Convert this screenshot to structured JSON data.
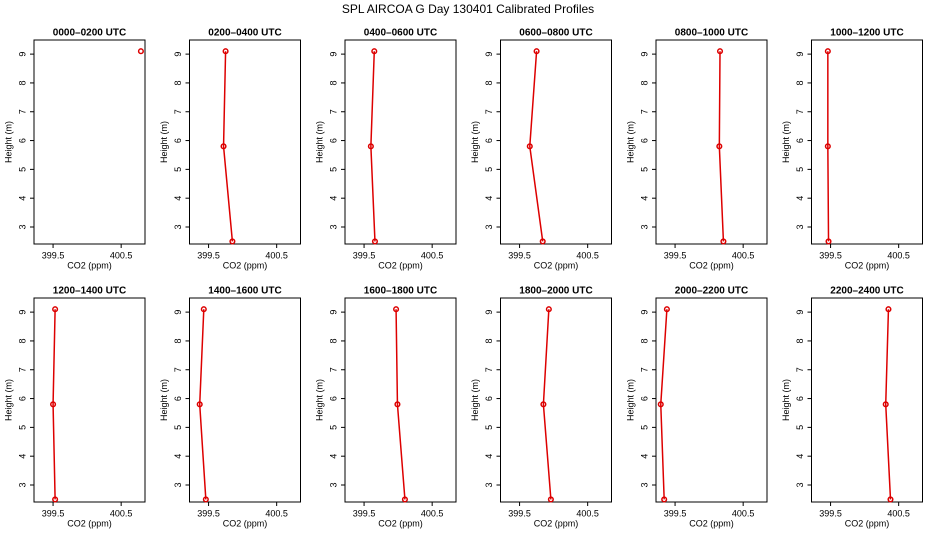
{
  "title": "SPL AIRCOA G  Day 130401  Calibrated Profiles",
  "chart_data": [
    {
      "type": "line",
      "title": "0000–0200 UTC",
      "x_label": "CO2 (ppm)",
      "y_label": "Height (m)",
      "xlim": [
        399.22,
        400.85
      ],
      "ylim": [
        2.41,
        9.49
      ],
      "xticks": [
        399.5,
        400.5
      ],
      "yticks": [
        3,
        4,
        5,
        6,
        7,
        8,
        9
      ],
      "series": [
        {
          "color": "#dd0000",
          "x": [
            400.79
          ],
          "values": [
            9.1
          ]
        }
      ]
    },
    {
      "type": "line",
      "title": "0200–0400 UTC",
      "x_label": "CO2 (ppm)",
      "y_label": "Height (m)",
      "xlim": [
        399.22,
        400.85
      ],
      "ylim": [
        2.41,
        9.49
      ],
      "xticks": [
        399.5,
        400.5
      ],
      "yticks": [
        3,
        4,
        5,
        6,
        7,
        8,
        9
      ],
      "series": [
        {
          "color": "#dd0000",
          "x": [
            399.85,
            399.72,
            399.75
          ],
          "values": [
            2.5,
            5.8,
            9.1
          ]
        }
      ]
    },
    {
      "type": "line",
      "title": "0400–0600 UTC",
      "x_label": "CO2 (ppm)",
      "y_label": "Height (m)",
      "xlim": [
        399.22,
        400.85
      ],
      "ylim": [
        2.41,
        9.49
      ],
      "xticks": [
        399.5,
        400.5
      ],
      "yticks": [
        3,
        4,
        5,
        6,
        7,
        8,
        9
      ],
      "series": [
        {
          "color": "#dd0000",
          "x": [
            399.66,
            399.6,
            399.65
          ],
          "values": [
            2.5,
            5.8,
            9.1
          ]
        }
      ]
    },
    {
      "type": "line",
      "title": "0600–0800 UTC",
      "x_label": "CO2 (ppm)",
      "y_label": "Height (m)",
      "xlim": [
        399.22,
        400.85
      ],
      "ylim": [
        2.41,
        9.49
      ],
      "xticks": [
        399.5,
        400.5
      ],
      "yticks": [
        3,
        4,
        5,
        6,
        7,
        8,
        9
      ],
      "series": [
        {
          "color": "#dd0000",
          "x": [
            399.84,
            399.65,
            399.75
          ],
          "values": [
            2.5,
            5.8,
            9.1
          ]
        }
      ]
    },
    {
      "type": "line",
      "title": "0800–1000 UTC",
      "x_label": "CO2 (ppm)",
      "y_label": "Height (m)",
      "xlim": [
        399.22,
        400.85
      ],
      "ylim": [
        2.41,
        9.49
      ],
      "xticks": [
        399.5,
        400.5
      ],
      "yticks": [
        3,
        4,
        5,
        6,
        7,
        8,
        9
      ],
      "series": [
        {
          "color": "#dd0000",
          "x": [
            400.21,
            400.15,
            400.16
          ],
          "values": [
            2.5,
            5.8,
            9.1
          ]
        }
      ]
    },
    {
      "type": "line",
      "title": "1000–1200 UTC",
      "x_label": "CO2 (ppm)",
      "y_label": "Height (m)",
      "xlim": [
        399.22,
        400.85
      ],
      "ylim": [
        2.41,
        9.49
      ],
      "xticks": [
        399.5,
        400.5
      ],
      "yticks": [
        3,
        4,
        5,
        6,
        7,
        8,
        9
      ],
      "series": [
        {
          "color": "#dd0000",
          "x": [
            399.47,
            399.46,
            399.46
          ],
          "values": [
            2.5,
            5.8,
            9.1
          ]
        }
      ]
    },
    {
      "type": "line",
      "title": "1200–1400 UTC",
      "x_label": "CO2 (ppm)",
      "y_label": "Height (m)",
      "xlim": [
        399.22,
        400.85
      ],
      "ylim": [
        2.41,
        9.49
      ],
      "xticks": [
        399.5,
        400.5
      ],
      "yticks": [
        3,
        4,
        5,
        6,
        7,
        8,
        9
      ],
      "series": [
        {
          "color": "#dd0000",
          "x": [
            399.53,
            399.5,
            399.53
          ],
          "values": [
            2.5,
            5.8,
            9.1
          ]
        }
      ]
    },
    {
      "type": "line",
      "title": "1400–1600 UTC",
      "x_label": "CO2 (ppm)",
      "y_label": "Height (m)",
      "xlim": [
        399.22,
        400.85
      ],
      "ylim": [
        2.41,
        9.49
      ],
      "xticks": [
        399.5,
        400.5
      ],
      "yticks": [
        3,
        4,
        5,
        6,
        7,
        8,
        9
      ],
      "series": [
        {
          "color": "#dd0000",
          "x": [
            399.46,
            399.37,
            399.43
          ],
          "values": [
            2.5,
            5.8,
            9.1
          ]
        }
      ]
    },
    {
      "type": "line",
      "title": "1600–1800 UTC",
      "x_label": "CO2 (ppm)",
      "y_label": "Height (m)",
      "xlim": [
        399.22,
        400.85
      ],
      "ylim": [
        2.41,
        9.49
      ],
      "xticks": [
        399.5,
        400.5
      ],
      "yticks": [
        3,
        4,
        5,
        6,
        7,
        8,
        9
      ],
      "series": [
        {
          "color": "#dd0000",
          "x": [
            400.1,
            399.99,
            399.97
          ],
          "values": [
            2.5,
            5.8,
            9.1
          ]
        }
      ]
    },
    {
      "type": "line",
      "title": "1800–2000 UTC",
      "x_label": "CO2 (ppm)",
      "y_label": "Height (m)",
      "xlim": [
        399.22,
        400.85
      ],
      "ylim": [
        2.41,
        9.49
      ],
      "xticks": [
        399.5,
        400.5
      ],
      "yticks": [
        3,
        4,
        5,
        6,
        7,
        8,
        9
      ],
      "series": [
        {
          "color": "#dd0000",
          "x": [
            399.96,
            399.85,
            399.93
          ],
          "values": [
            2.5,
            5.8,
            9.1
          ]
        }
      ]
    },
    {
      "type": "line",
      "title": "2000–2200 UTC",
      "x_label": "CO2 (ppm)",
      "y_label": "Height (m)",
      "xlim": [
        399.22,
        400.85
      ],
      "ylim": [
        2.41,
        9.49
      ],
      "xticks": [
        399.5,
        400.5
      ],
      "yticks": [
        3,
        4,
        5,
        6,
        7,
        8,
        9
      ],
      "series": [
        {
          "color": "#dd0000",
          "x": [
            399.34,
            399.29,
            399.38
          ],
          "values": [
            2.5,
            5.8,
            9.1
          ]
        }
      ]
    },
    {
      "type": "line",
      "title": "2200–2400 UTC",
      "x_label": "CO2 (ppm)",
      "y_label": "Height (m)",
      "xlim": [
        399.22,
        400.85
      ],
      "ylim": [
        2.41,
        9.49
      ],
      "xticks": [
        399.5,
        400.5
      ],
      "yticks": [
        3,
        4,
        5,
        6,
        7,
        8,
        9
      ],
      "series": [
        {
          "color": "#dd0000",
          "x": [
            400.38,
            400.31,
            400.35
          ],
          "values": [
            2.5,
            5.8,
            9.1
          ]
        }
      ]
    }
  ]
}
